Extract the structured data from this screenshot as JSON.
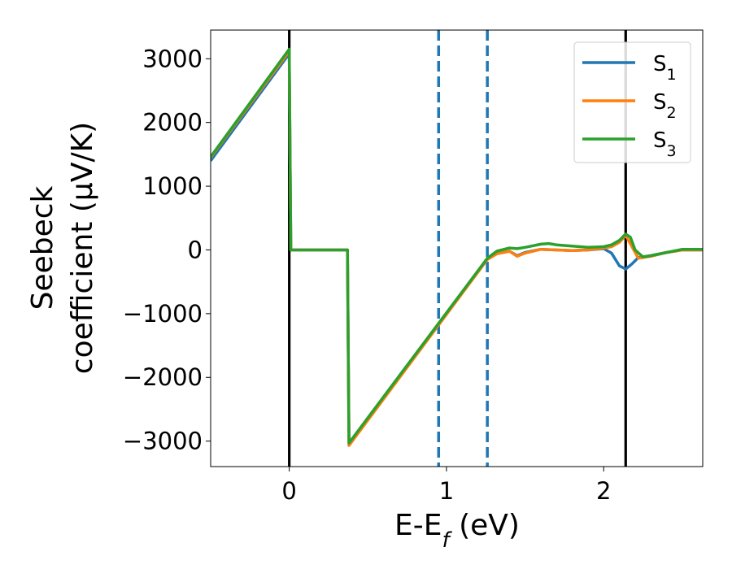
{
  "chart_data": {
    "type": "line",
    "xlabel": "E-E_f (eV)",
    "ylabel_line1": "Seebeck",
    "ylabel_line2": "coefficient  (μV/K)",
    "xlim": [
      -0.5,
      2.63
    ],
    "ylim": [
      -3400,
      3450
    ],
    "xticks": [
      0,
      1,
      2
    ],
    "xtick_labels": [
      "0",
      "1",
      "2"
    ],
    "yticks": [
      3000,
      2000,
      1000,
      0,
      -1000,
      -2000,
      -3000
    ],
    "ytick_labels": [
      "3000",
      "2000",
      "1000",
      "0",
      "−1000",
      "−2000",
      "−3000"
    ],
    "grid": false,
    "legend_position": "top-right",
    "vlines": [
      {
        "x": 0.0,
        "style": "solid",
        "color": "#000000"
      },
      {
        "x": 0.95,
        "style": "dashed",
        "color": "#1f77b4"
      },
      {
        "x": 1.26,
        "style": "dashed",
        "color": "#1f77b4"
      },
      {
        "x": 2.14,
        "style": "solid",
        "color": "#000000"
      }
    ],
    "series": [
      {
        "name": "S1",
        "label_main": "S",
        "label_sub": "1",
        "color": "#1f77b4",
        "x": [
          -0.5,
          0.0,
          0.01,
          0.37,
          0.38,
          1.26,
          1.32,
          1.4,
          1.45,
          1.5,
          1.6,
          1.7,
          1.8,
          1.9,
          2.0,
          2.05,
          2.1,
          2.14,
          2.18,
          2.22,
          2.3,
          2.4,
          2.5,
          2.63
        ],
        "y": [
          1400,
          3080,
          0,
          0,
          -3050,
          -140,
          -60,
          -20,
          -90,
          -40,
          10,
          0,
          -10,
          0,
          20,
          -50,
          -250,
          -300,
          -220,
          -120,
          -90,
          -40,
          0,
          0
        ]
      },
      {
        "name": "S2",
        "label_main": "S",
        "label_sub": "2",
        "color": "#ff7f0e",
        "x": [
          -0.5,
          0.0,
          0.01,
          0.37,
          0.38,
          1.26,
          1.32,
          1.4,
          1.45,
          1.5,
          1.6,
          1.7,
          1.8,
          1.9,
          2.0,
          2.05,
          2.1,
          2.14,
          2.18,
          2.22,
          2.3,
          2.4,
          2.5,
          2.63
        ],
        "y": [
          1450,
          3120,
          0,
          0,
          -3070,
          -150,
          -60,
          -20,
          -100,
          -50,
          10,
          0,
          -10,
          0,
          30,
          50,
          120,
          230,
          50,
          -130,
          -100,
          -40,
          0,
          0
        ]
      },
      {
        "name": "S3",
        "label_main": "S",
        "label_sub": "3",
        "color": "#2ca02c",
        "x": [
          -0.5,
          0.0,
          0.01,
          0.37,
          0.38,
          1.26,
          1.32,
          1.4,
          1.45,
          1.5,
          1.6,
          1.65,
          1.7,
          1.8,
          1.9,
          2.0,
          2.05,
          2.1,
          2.14,
          2.17,
          2.2,
          2.25,
          2.3,
          2.4,
          2.5,
          2.63
        ],
        "y": [
          1460,
          3150,
          0,
          0,
          -3030,
          -130,
          -20,
          30,
          20,
          40,
          90,
          100,
          80,
          60,
          40,
          50,
          80,
          150,
          250,
          200,
          0,
          -110,
          -90,
          -40,
          10,
          10
        ]
      }
    ]
  }
}
